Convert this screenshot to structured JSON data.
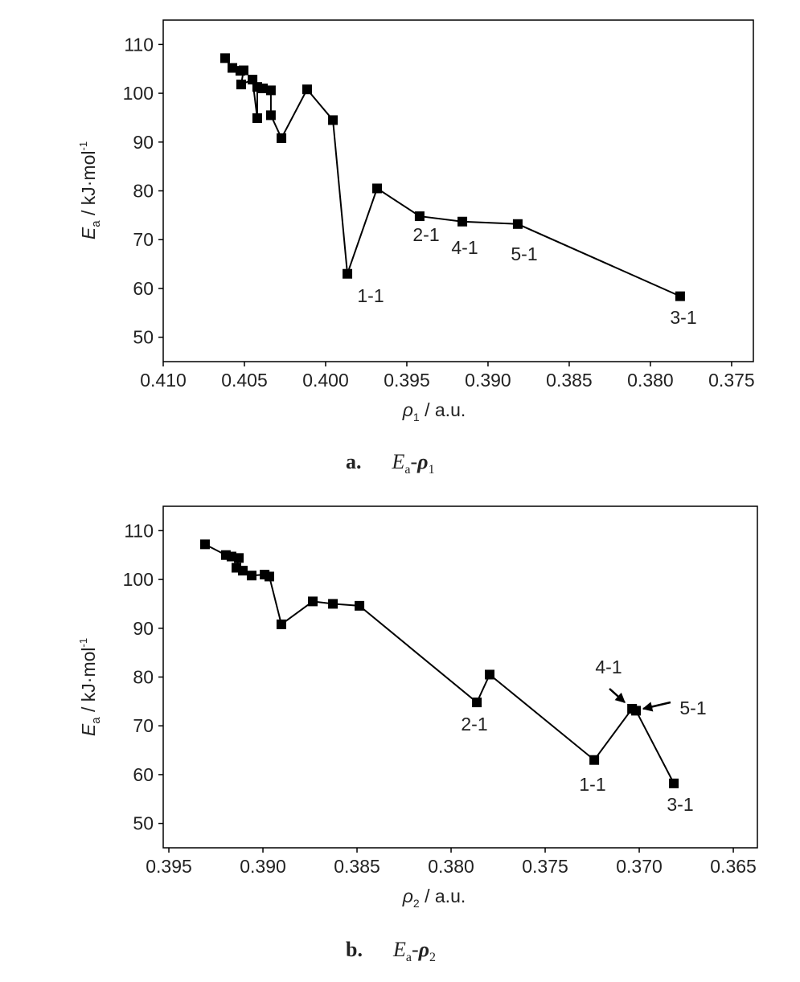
{
  "chart_data": [
    {
      "type": "line",
      "color": "#000000",
      "xlabel": {
        "symbol": "ρ",
        "sub": "1",
        "rest": " / a.u."
      },
      "ylabel": {
        "symbol": "E",
        "sub": "a",
        "rest": " / kJ·mol",
        "sup": "-1"
      },
      "caption": {
        "letter": "a.",
        "symbol": "E",
        "sub": "a",
        "dash": "-",
        "rho": "ρ",
        "rhosub": "1"
      },
      "x": [
        0.40619,
        0.40574,
        0.40525,
        0.40505,
        0.4052,
        0.4045,
        0.40421,
        0.40421,
        0.40386,
        0.40337,
        0.40337,
        0.40272,
        0.40114,
        0.39955,
        0.39866,
        0.39683,
        0.39421,
        0.39158,
        0.38817,
        0.37817
      ],
      "values": [
        107.2,
        105.2,
        104.6,
        104.7,
        101.8,
        102.8,
        94.9,
        101.3,
        101.0,
        100.6,
        95.5,
        90.8,
        100.8,
        94.5,
        63.0,
        80.5,
        74.8,
        73.7,
        73.2,
        58.4
      ],
      "xlim": [
        0.41,
        0.37366
      ],
      "ylim": [
        45,
        115
      ],
      "xticks": [
        {
          "value": 0.41,
          "label": "0.410"
        },
        0.405,
        {
          "value": 0.4,
          "label": "0.400"
        },
        0.395,
        {
          "value": 0.39,
          "label": "0.390"
        },
        0.385,
        {
          "value": 0.38,
          "label": "0.380"
        },
        0.375
      ],
      "yticks": [
        50,
        60,
        70,
        80,
        90,
        100,
        110
      ],
      "annotations": [
        "1-1",
        "2-1",
        "4-1",
        "5-1",
        "3-1"
      ]
    },
    {
      "type": "line",
      "color": "#000000",
      "xlabel": {
        "symbol": "ρ",
        "sub": "2",
        "rest": " / a.u."
      },
      "ylabel": {
        "symbol": "E",
        "sub": "a",
        "rest": " / kJ·mol",
        "sup": "-1"
      },
      "caption": {
        "letter": "b.",
        "symbol": "E",
        "sub": "a",
        "dash": "-",
        "rho": "ρ",
        "rhosub": "2"
      },
      "x": [
        0.39308,
        0.39197,
        0.39167,
        0.39128,
        0.39141,
        0.39107,
        0.3906,
        0.38991,
        0.38966,
        0.38902,
        0.38735,
        0.38628,
        0.38487,
        0.37863,
        0.37795,
        0.37239,
        0.37038,
        0.37017,
        0.36816
      ],
      "values": [
        107.2,
        105.0,
        104.7,
        104.4,
        102.4,
        101.8,
        100.8,
        101.0,
        100.6,
        90.8,
        95.5,
        95.0,
        94.6,
        74.8,
        80.5,
        63.0,
        73.5,
        73.1,
        58.2
      ],
      "xlim": [
        0.3953,
        0.36372
      ],
      "ylim": [
        45,
        115
      ],
      "xticks": [
        0.395,
        {
          "value": 0.39,
          "label": "0.390"
        },
        0.385,
        {
          "value": 0.38,
          "label": "0.380"
        },
        0.375,
        {
          "value": 0.37,
          "label": "0.370"
        },
        0.365
      ],
      "yticks": [
        50,
        60,
        70,
        80,
        90,
        100,
        110
      ],
      "annotations": [
        "2-1",
        "1-1",
        "4-1",
        "5-1",
        "3-1"
      ]
    }
  ]
}
